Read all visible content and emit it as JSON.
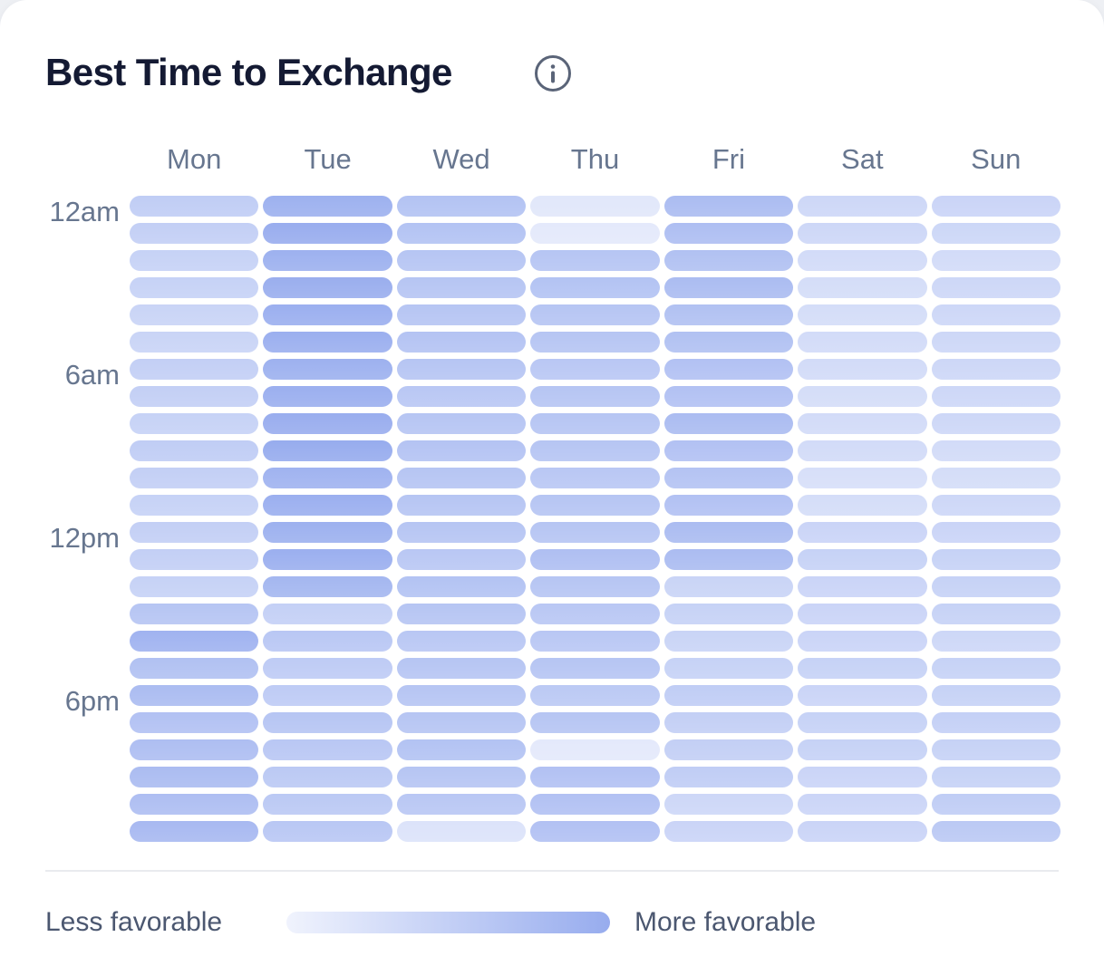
{
  "header": {
    "title": "Best Time to Exchange"
  },
  "chart_data": {
    "type": "heatmap",
    "title": "Best Time to Exchange",
    "categories": [
      "Mon",
      "Tue",
      "Wed",
      "Thu",
      "Fri",
      "Sat",
      "Sun"
    ],
    "rows": 24,
    "row_unit": "hour-of-day",
    "hour_labels": [
      {
        "label": "12am",
        "row": 0
      },
      {
        "label": "6am",
        "row": 6
      },
      {
        "label": "12pm",
        "row": 12
      },
      {
        "label": "6pm",
        "row": 18
      }
    ],
    "value_scale": "favorability 0-100 (estimated from cell shading)",
    "series": [
      {
        "name": "Mon",
        "values": [
          54,
          51,
          47,
          47,
          44,
          44,
          51,
          51,
          47,
          54,
          51,
          47,
          51,
          51,
          47,
          65,
          90,
          71,
          78,
          70,
          74,
          78,
          74,
          81
        ]
      },
      {
        "name": "Tue",
        "values": [
          93,
          98,
          93,
          97,
          96,
          96,
          93,
          96,
          98,
          100,
          90,
          96,
          93,
          96,
          85,
          50,
          62,
          56,
          56,
          65,
          62,
          59,
          59,
          62
        ]
      },
      {
        "name": "Wed",
        "values": [
          68,
          68,
          65,
          65,
          65,
          67,
          65,
          62,
          65,
          67,
          65,
          65,
          65,
          62,
          68,
          65,
          62,
          65,
          65,
          65,
          68,
          65,
          62,
          23
        ]
      },
      {
        "name": "Thu",
        "values": [
          17,
          14,
          65,
          68,
          65,
          65,
          62,
          65,
          65,
          65,
          62,
          65,
          65,
          73,
          65,
          62,
          62,
          65,
          59,
          65,
          14,
          70,
          70,
          70
        ]
      },
      {
        "name": "Fri",
        "values": [
          78,
          74,
          71,
          78,
          71,
          71,
          70,
          70,
          78,
          70,
          67,
          70,
          78,
          78,
          44,
          47,
          44,
          47,
          54,
          51,
          51,
          54,
          39,
          43
        ]
      },
      {
        "name": "Sat",
        "values": [
          39,
          39,
          34,
          31,
          31,
          34,
          34,
          31,
          34,
          34,
          28,
          31,
          43,
          47,
          43,
          43,
          43,
          47,
          43,
          47,
          47,
          43,
          42,
          43
        ]
      },
      {
        "name": "Sun",
        "values": [
          43,
          40,
          34,
          39,
          39,
          39,
          39,
          39,
          39,
          34,
          31,
          39,
          43,
          47,
          47,
          47,
          39,
          47,
          47,
          50,
          47,
          47,
          54,
          59
        ]
      }
    ],
    "colors": {
      "low": "#f0f3fd",
      "high": "#97acee"
    },
    "legend": {
      "less": "Less favorable",
      "more": "More favorable"
    },
    "legend_position": "bottom",
    "grid": false
  },
  "icons": {
    "info": "info-icon"
  }
}
